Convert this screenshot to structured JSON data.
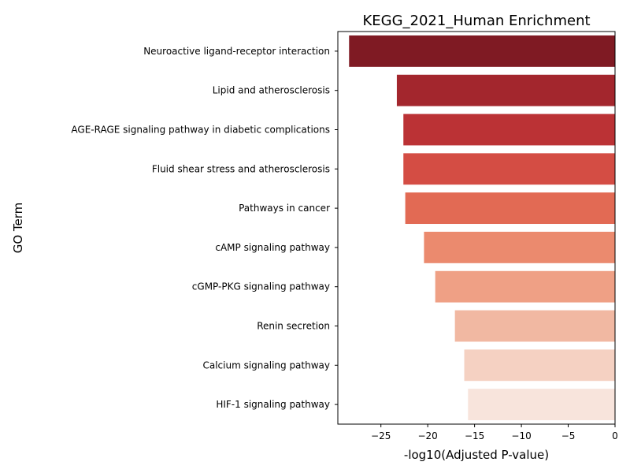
{
  "chart_data": {
    "type": "bar",
    "orientation": "horizontal",
    "title": "KEGG_2021_Human Enrichment",
    "xlabel": "-log10(Adjusted P-value)",
    "ylabel": "GO Term",
    "xlim": [
      -29.6,
      0
    ],
    "xticks": [
      -25,
      -20,
      -15,
      -10,
      -5,
      0
    ],
    "xtick_labels": [
      "−25",
      "−20",
      "−15",
      "−10",
      "−5",
      "0"
    ],
    "grid": false,
    "categories": [
      "Neuroactive ligand-receptor interaction",
      "Lipid and atherosclerosis",
      "AGE-RAGE signaling pathway in diabetic complications",
      "Fluid shear stress and atherosclerosis",
      "Pathways in cancer",
      "cAMP signaling pathway",
      "cGMP-PKG signaling pathway",
      "Renin secretion",
      "Calcium signaling pathway",
      "HIF-1 signaling pathway"
    ],
    "values": [
      -28.4,
      -23.3,
      -22.6,
      -22.6,
      -22.4,
      -20.4,
      -19.2,
      -17.1,
      -16.1,
      -15.7
    ],
    "colors": [
      "#7f1a23",
      "#a3262d",
      "#bb3235",
      "#d44d44",
      "#e26a54",
      "#eb8a6e",
      "#efa085",
      "#f1b8a2",
      "#f5d1c2",
      "#f8e4dc"
    ]
  }
}
